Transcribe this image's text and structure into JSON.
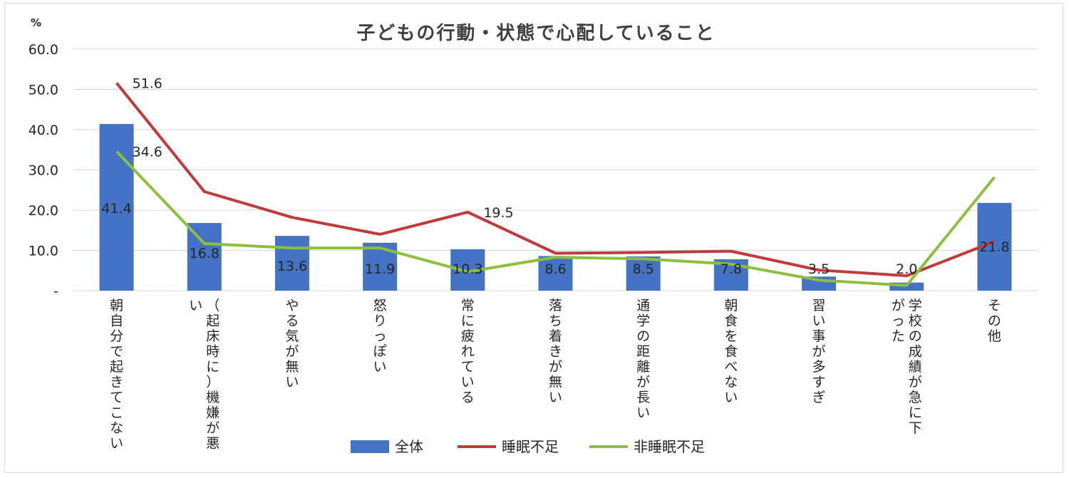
{
  "chart_data": {
    "type": "bar",
    "title": "子どもの行動・状態で心配していること",
    "ylabel": "%",
    "ylim": [
      0,
      60
    ],
    "y_tick_labels": [
      "-",
      "10.0",
      "20.0",
      "30.0",
      "40.0",
      "50.0",
      "60.0"
    ],
    "grid": true,
    "legend_position": "bottom",
    "categories": [
      "朝自分で起きてこない",
      "（起床時に）機嫌が悪い",
      "やる気が無い",
      "怒りっぽい",
      "常に疲れている",
      "落ち着きが無い",
      "通学の距離が長い",
      "朝食を食べない",
      "習い事が多すぎ",
      "学校の成績が急に下がった",
      "その他"
    ],
    "category_lines": [
      [
        "朝自分で起きてこない"
      ],
      [
        "（起床時に）機嫌が悪",
        "い"
      ],
      [
        "やる気が無い"
      ],
      [
        "怒りっぽい"
      ],
      [
        "常に疲れている"
      ],
      [
        "落ち着きが無い"
      ],
      [
        "通学の距離が長い"
      ],
      [
        "朝食を食べない"
      ],
      [
        "習い事が多すぎ"
      ],
      [
        "学校の成績が急に下",
        "がった"
      ],
      [
        "その他"
      ]
    ],
    "series": [
      {
        "name": "全体",
        "type": "bar",
        "color": "#4472c4",
        "values": [
          41.4,
          16.8,
          13.6,
          11.9,
          10.3,
          8.6,
          8.5,
          7.8,
          3.5,
          2.0,
          21.8
        ],
        "labels": [
          "41.4",
          "16.8",
          "13.6",
          "11.9",
          "10.3",
          "8.6",
          "8.5",
          "7.8",
          "3.5",
          "2.0",
          "21.8"
        ]
      },
      {
        "name": "睡眠不足",
        "type": "line",
        "color": "#c0393b",
        "values": [
          51.6,
          24.6,
          18.2,
          14.0,
          19.5,
          9.3,
          9.5,
          9.8,
          5.1,
          3.7,
          12.2
        ],
        "labels": [
          "51.6",
          null,
          null,
          null,
          "19.5",
          null,
          null,
          null,
          null,
          null,
          null
        ]
      },
      {
        "name": "非睡眠不足",
        "type": "line",
        "color": "#8cbf3f",
        "values": [
          34.6,
          11.7,
          10.6,
          10.6,
          4.7,
          8.3,
          7.9,
          6.6,
          2.6,
          1.3,
          28.2
        ],
        "labels": [
          "34.6",
          null,
          null,
          null,
          null,
          null,
          null,
          null,
          null,
          null,
          null
        ]
      }
    ]
  }
}
